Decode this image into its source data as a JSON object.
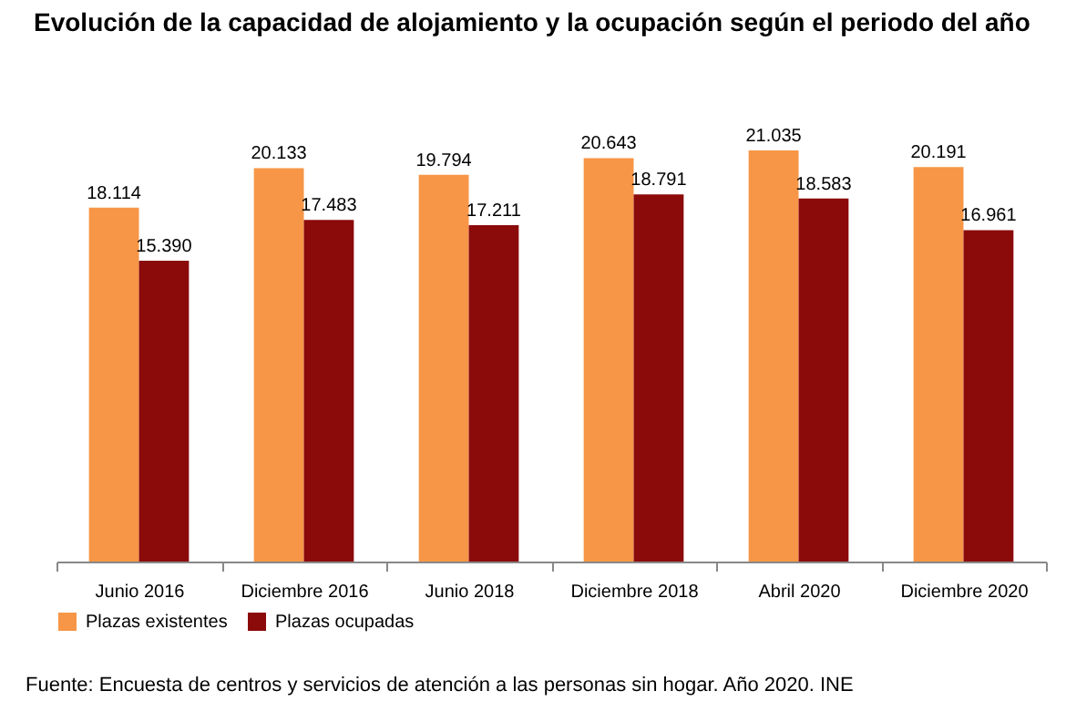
{
  "chart_data": {
    "type": "bar",
    "title": "Evolución de la capacidad de alojamiento y la ocupación según el periodo del año",
    "categories": [
      "Junio 2016",
      "Diciembre 2016",
      "Junio 2018",
      "Diciembre 2018",
      "Abril 2020",
      "Diciembre 2020"
    ],
    "series": [
      {
        "name": "Plazas existentes",
        "color": "#f79646",
        "values": [
          18114,
          20133,
          19794,
          20643,
          21035,
          20191
        ],
        "value_labels": [
          "18.114",
          "20.133",
          "19.794",
          "20.643",
          "21.035",
          "20.191"
        ]
      },
      {
        "name": "Plazas ocupadas",
        "color": "#8b0a0a",
        "values": [
          15390,
          17483,
          17211,
          18791,
          18583,
          16961
        ],
        "value_labels": [
          "15.390",
          "17.483",
          "17.211",
          "18.791",
          "18.583",
          "16.961"
        ]
      }
    ],
    "legend": "bottom",
    "grid": false,
    "annotations": [
      "Fuente: Encuesta de centros y servicios de atención a las personas sin hogar. Año 2020. INE"
    ]
  }
}
